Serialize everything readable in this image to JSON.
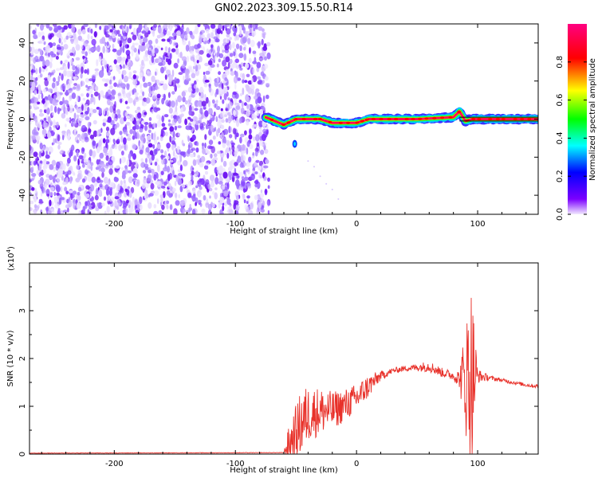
{
  "title": "GN02.2023.309.15.50.R14",
  "chart_data": [
    {
      "type": "heatmap",
      "title": "GN02.2023.309.15.50.R14",
      "xlabel": "Height of straight line (km)",
      "ylabel": "Frequency (Hz)",
      "xlim": [
        -270,
        150
      ],
      "ylim": [
        -50,
        50
      ],
      "x_ticks": [
        -200,
        -100,
        0,
        100
      ],
      "y_ticks": [
        40,
        20,
        0,
        -20,
        -40
      ],
      "x_tick_labels": [
        "-200",
        "-100",
        "0",
        "100"
      ],
      "y_tick_labels": [
        "40",
        "20",
        "0",
        "-20",
        "-40"
      ],
      "noise_region_x": [
        -270,
        -75
      ],
      "signal_band": {
        "x_start": -75,
        "x_end": 150,
        "center_freq": [
          [
            -75,
            1
          ],
          [
            -60,
            -3
          ],
          [
            -50,
            0
          ],
          [
            -30,
            0
          ],
          [
            -20,
            -2
          ],
          [
            0,
            -2
          ],
          [
            10,
            0
          ],
          [
            50,
            0
          ],
          [
            80,
            1
          ],
          [
            85,
            4
          ],
          [
            90,
            -1
          ],
          [
            95,
            0
          ],
          [
            150,
            0
          ]
        ]
      },
      "colorbar": {
        "label": "Normalized spectral amplitude",
        "ticks": [
          0.0,
          0.2,
          0.4,
          0.6,
          0.8
        ],
        "tick_labels": [
          "0.0",
          "0.2",
          "0.4",
          "0.6",
          "0.8"
        ],
        "range": [
          0,
          1
        ],
        "colors": [
          "#f0e8ff",
          "#7b00ff",
          "#0000ff",
          "#00ffff",
          "#00ff00",
          "#ffff00",
          "#ff0000",
          "#ff0080"
        ]
      },
      "grid": false
    },
    {
      "type": "line",
      "xlabel": "Height of straight line (km)",
      "ylabel": "SNR (10 * v/v)",
      "scale_label": "(x10",
      "scale_exp": "4",
      "scale_close": ")",
      "xlim": [
        -270,
        150
      ],
      "ylim": [
        0,
        4
      ],
      "x_ticks": [
        -200,
        -100,
        0,
        100
      ],
      "y_ticks": [
        0,
        1,
        2,
        3
      ],
      "x_tick_labels": [
        "-200",
        "-100",
        "0",
        "100"
      ],
      "y_tick_labels": [
        "0",
        "1",
        "2",
        "3"
      ],
      "series": [
        {
          "color": "#e8312a",
          "envelope": {
            "x": [
              -270,
              -60,
              -57,
              -50,
              -45,
              -40,
              -30,
              -20,
              -10,
              0,
              10,
              20,
              30,
              40,
              50,
              60,
              70,
              80,
              85,
              90,
              95,
              100,
              110,
              120,
              130,
              140,
              150
            ],
            "y": [
              0.02,
              0.03,
              0.2,
              0.5,
              0.75,
              0.9,
              0.95,
              0.95,
              1.05,
              1.2,
              1.45,
              1.65,
              1.75,
              1.8,
              1.82,
              1.85,
              1.72,
              1.65,
              1.6,
              1.7,
              1.9,
              1.65,
              1.6,
              1.55,
              1.5,
              1.45,
              1.42
            ],
            "noise_amp": [
              0.01,
              0.01,
              0.3,
              0.6,
              0.7,
              0.6,
              0.5,
              0.4,
              0.35,
              0.3,
              0.25,
              0.1,
              0.06,
              0.06,
              0.08,
              0.12,
              0.1,
              0.1,
              0.2,
              1.2,
              2.0,
              0.15,
              0.05,
              0.04,
              0.04,
              0.04,
              0.04
            ]
          }
        }
      ],
      "grid": false
    }
  ]
}
